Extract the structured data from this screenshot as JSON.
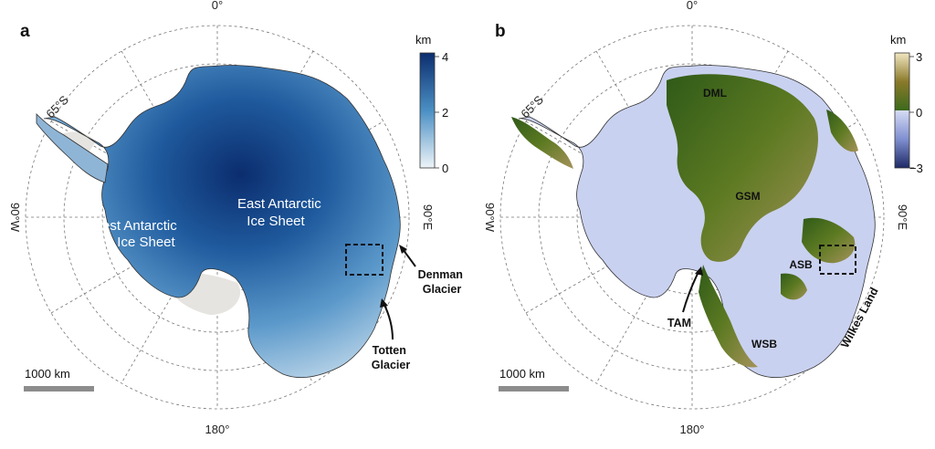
{
  "panels": [
    {
      "letter": "a",
      "lat_label": "65°S",
      "lon_top": "0°",
      "lon_bottom": "180°",
      "lon_left": "90°W",
      "lon_right": "90°E",
      "colorbar": {
        "unit": "km",
        "ticks": [
          "4",
          "2",
          "0"
        ],
        "colors": {
          "top": "#0b2d6e",
          "mid": "#4a8fc4",
          "bottom": "#eef4f8"
        }
      },
      "labels": {
        "wais": [
          "West Antarctic",
          "Ice Sheet"
        ],
        "eais": [
          "East Antarctic",
          "Ice Sheet"
        ],
        "denman": [
          "Denman",
          "Glacier"
        ],
        "totten": [
          "Totten",
          "Glacier"
        ]
      },
      "scale_bar": "1000 km"
    },
    {
      "letter": "b",
      "lat_label": "65°S",
      "lon_top": "0°",
      "lon_bottom": "180°",
      "lon_left": "90°W",
      "lon_right": "90°E",
      "colorbar": {
        "unit": "km",
        "ticks": [
          "3",
          "0",
          "−3"
        ],
        "colors": {
          "top": "#f2e6c2",
          "upper": "#8a7a2a",
          "lower": "#3c6a1c",
          "zero": "#d6dcf5",
          "bottom": "#1e2a66"
        }
      },
      "labels": {
        "dml": "DML",
        "gsm": "GSM",
        "asb": "ASB",
        "tam": "TAM",
        "wsb": "WSB",
        "wilkes": "Wilkes Land"
      },
      "scale_bar": "1000 km"
    }
  ]
}
